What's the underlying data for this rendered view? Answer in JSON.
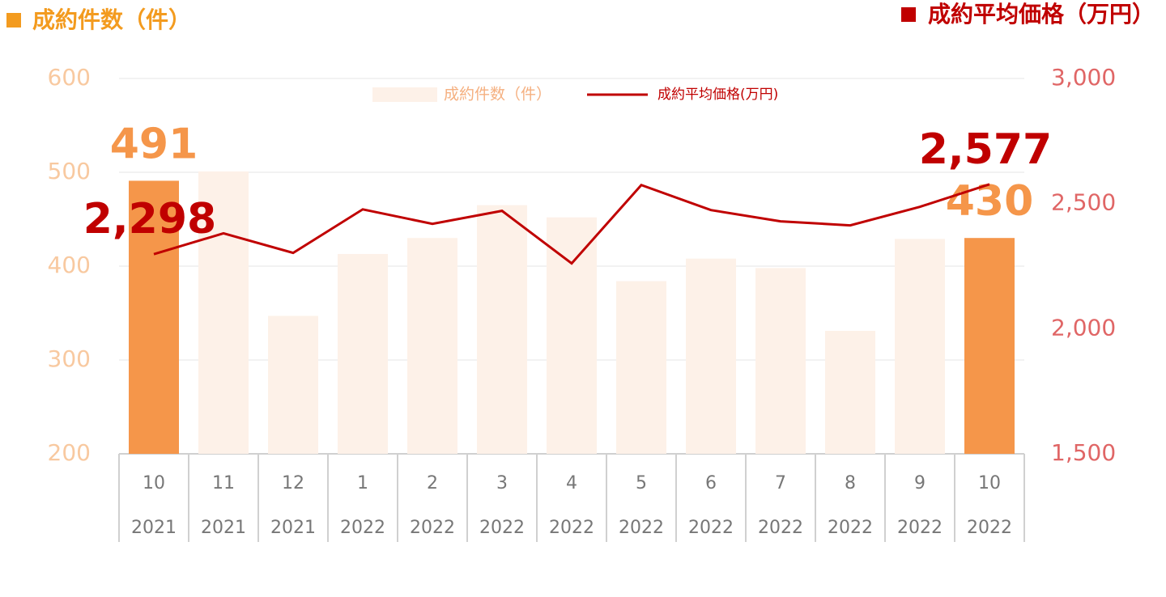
{
  "chart_data": {
    "type": "bar_line",
    "title_left": "成約件数（件）",
    "title_right": "成約平均価格（万円）",
    "title_left_color": "#f39b1f",
    "title_right_color": "#c00000",
    "categories": [
      "10",
      "11",
      "12",
      "1",
      "2",
      "3",
      "4",
      "5",
      "6",
      "7",
      "8",
      "9",
      "10"
    ],
    "category_years": [
      "2021",
      "2021",
      "2021",
      "2022",
      "2022",
      "2022",
      "2022",
      "2022",
      "2022",
      "2022",
      "2022",
      "2022",
      "2022"
    ],
    "series": [
      {
        "name": "成約件数（件）",
        "type": "bar",
        "color": "#fdf1e8",
        "colors": [
          "#f5964a",
          "#fdf1e8",
          "#fdf1e8",
          "#fdf1e8",
          "#fdf1e8",
          "#fdf1e8",
          "#fdf1e8",
          "#fdf1e8",
          "#fdf1e8",
          "#fdf1e8",
          "#fdf1e8",
          "#fdf1e8",
          "#f5964a"
        ],
        "values": [
          491,
          501,
          347,
          413,
          430,
          465,
          452,
          384,
          408,
          398,
          331,
          429,
          430
        ],
        "value_labels": [
          "491",
          null,
          null,
          null,
          null,
          null,
          null,
          null,
          null,
          null,
          null,
          null,
          "430"
        ],
        "label_color": "#f5964a"
      },
      {
        "name": "成約平均価格(万円)",
        "type": "line",
        "axis": "y2",
        "color": "#c00000",
        "values": [
          2298,
          2381,
          2303,
          2477,
          2419,
          2471,
          2261,
          2574,
          2474,
          2429,
          2413,
          2487,
          2577
        ],
        "value_labels": [
          "2,298",
          null,
          null,
          null,
          null,
          null,
          null,
          null,
          null,
          null,
          null,
          null,
          "2,577"
        ],
        "label_color": "#c00000"
      }
    ],
    "ylim": [
      200,
      600
    ],
    "yticks": [
      200,
      300,
      400,
      500,
      600
    ],
    "y2lim": [
      1500,
      3000
    ],
    "y2ticks": [
      {
        "value": 1500,
        "label": "1,500"
      },
      {
        "value": 2000,
        "label": "2,000"
      },
      {
        "value": 2500,
        "label": "2,500"
      },
      {
        "value": 3000,
        "label": "3,000"
      }
    ],
    "ytick_color": "#f8c9a0",
    "y2tick_color": "#e06666",
    "grid": true
  }
}
